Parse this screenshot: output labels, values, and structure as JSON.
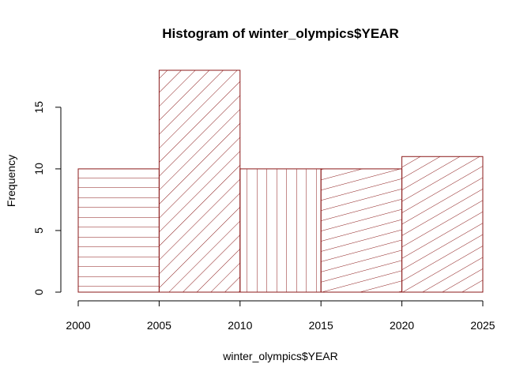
{
  "chart_data": {
    "type": "bar",
    "title": "Histogram of winter_olympics$YEAR",
    "xlabel": "winter_olympics$YEAR",
    "ylabel": "Frequency",
    "bins": [
      {
        "from": 2000,
        "to": 2005,
        "count": 10,
        "hatch_angle": 0
      },
      {
        "from": 2005,
        "to": 2010,
        "count": 18,
        "hatch_angle": 45
      },
      {
        "from": 2010,
        "to": 2015,
        "count": 10,
        "hatch_angle": 90
      },
      {
        "from": 2015,
        "to": 2020,
        "count": 10,
        "hatch_angle": 15
      },
      {
        "from": 2020,
        "to": 2025,
        "count": 11,
        "hatch_angle": 30
      }
    ],
    "x_ticks": [
      "2000",
      "2005",
      "2010",
      "2015",
      "2020",
      "2025"
    ],
    "y_ticks": [
      "0",
      "5",
      "10",
      "15"
    ],
    "xlim": [
      2000,
      2025
    ],
    "ylim": [
      0,
      18
    ],
    "grid": false,
    "bar_color": "#8b1a1a"
  }
}
